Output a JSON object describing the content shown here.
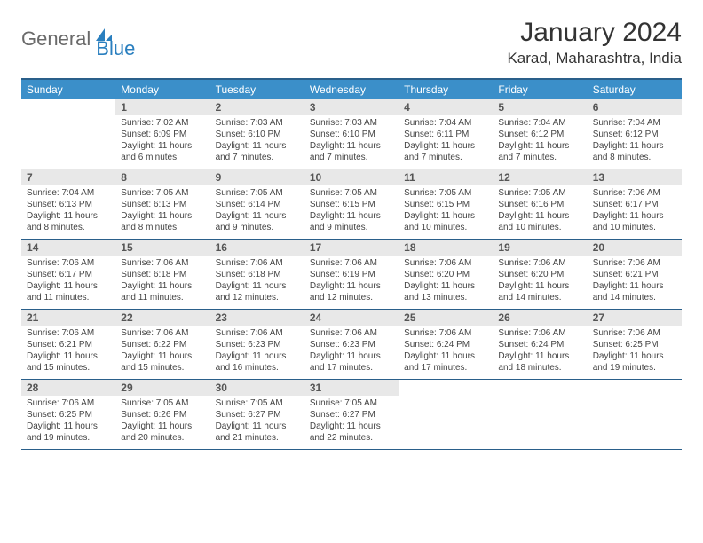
{
  "logo": {
    "text1": "General",
    "text2": "Blue"
  },
  "title": "January 2024",
  "location": "Karad, Maharashtra, India",
  "colors": {
    "header_bg": "#3b8fc9",
    "border": "#2a5f8a",
    "daynum_bg": "#e8e8e8"
  },
  "day_names": [
    "Sunday",
    "Monday",
    "Tuesday",
    "Wednesday",
    "Thursday",
    "Friday",
    "Saturday"
  ],
  "weeks": [
    [
      {
        "num": "",
        "sunrise": "",
        "sunset": "",
        "daylight": ""
      },
      {
        "num": "1",
        "sunrise": "Sunrise: 7:02 AM",
        "sunset": "Sunset: 6:09 PM",
        "daylight": "Daylight: 11 hours and 6 minutes."
      },
      {
        "num": "2",
        "sunrise": "Sunrise: 7:03 AM",
        "sunset": "Sunset: 6:10 PM",
        "daylight": "Daylight: 11 hours and 7 minutes."
      },
      {
        "num": "3",
        "sunrise": "Sunrise: 7:03 AM",
        "sunset": "Sunset: 6:10 PM",
        "daylight": "Daylight: 11 hours and 7 minutes."
      },
      {
        "num": "4",
        "sunrise": "Sunrise: 7:04 AM",
        "sunset": "Sunset: 6:11 PM",
        "daylight": "Daylight: 11 hours and 7 minutes."
      },
      {
        "num": "5",
        "sunrise": "Sunrise: 7:04 AM",
        "sunset": "Sunset: 6:12 PM",
        "daylight": "Daylight: 11 hours and 7 minutes."
      },
      {
        "num": "6",
        "sunrise": "Sunrise: 7:04 AM",
        "sunset": "Sunset: 6:12 PM",
        "daylight": "Daylight: 11 hours and 8 minutes."
      }
    ],
    [
      {
        "num": "7",
        "sunrise": "Sunrise: 7:04 AM",
        "sunset": "Sunset: 6:13 PM",
        "daylight": "Daylight: 11 hours and 8 minutes."
      },
      {
        "num": "8",
        "sunrise": "Sunrise: 7:05 AM",
        "sunset": "Sunset: 6:13 PM",
        "daylight": "Daylight: 11 hours and 8 minutes."
      },
      {
        "num": "9",
        "sunrise": "Sunrise: 7:05 AM",
        "sunset": "Sunset: 6:14 PM",
        "daylight": "Daylight: 11 hours and 9 minutes."
      },
      {
        "num": "10",
        "sunrise": "Sunrise: 7:05 AM",
        "sunset": "Sunset: 6:15 PM",
        "daylight": "Daylight: 11 hours and 9 minutes."
      },
      {
        "num": "11",
        "sunrise": "Sunrise: 7:05 AM",
        "sunset": "Sunset: 6:15 PM",
        "daylight": "Daylight: 11 hours and 10 minutes."
      },
      {
        "num": "12",
        "sunrise": "Sunrise: 7:05 AM",
        "sunset": "Sunset: 6:16 PM",
        "daylight": "Daylight: 11 hours and 10 minutes."
      },
      {
        "num": "13",
        "sunrise": "Sunrise: 7:06 AM",
        "sunset": "Sunset: 6:17 PM",
        "daylight": "Daylight: 11 hours and 10 minutes."
      }
    ],
    [
      {
        "num": "14",
        "sunrise": "Sunrise: 7:06 AM",
        "sunset": "Sunset: 6:17 PM",
        "daylight": "Daylight: 11 hours and 11 minutes."
      },
      {
        "num": "15",
        "sunrise": "Sunrise: 7:06 AM",
        "sunset": "Sunset: 6:18 PM",
        "daylight": "Daylight: 11 hours and 11 minutes."
      },
      {
        "num": "16",
        "sunrise": "Sunrise: 7:06 AM",
        "sunset": "Sunset: 6:18 PM",
        "daylight": "Daylight: 11 hours and 12 minutes."
      },
      {
        "num": "17",
        "sunrise": "Sunrise: 7:06 AM",
        "sunset": "Sunset: 6:19 PM",
        "daylight": "Daylight: 11 hours and 12 minutes."
      },
      {
        "num": "18",
        "sunrise": "Sunrise: 7:06 AM",
        "sunset": "Sunset: 6:20 PM",
        "daylight": "Daylight: 11 hours and 13 minutes."
      },
      {
        "num": "19",
        "sunrise": "Sunrise: 7:06 AM",
        "sunset": "Sunset: 6:20 PM",
        "daylight": "Daylight: 11 hours and 14 minutes."
      },
      {
        "num": "20",
        "sunrise": "Sunrise: 7:06 AM",
        "sunset": "Sunset: 6:21 PM",
        "daylight": "Daylight: 11 hours and 14 minutes."
      }
    ],
    [
      {
        "num": "21",
        "sunrise": "Sunrise: 7:06 AM",
        "sunset": "Sunset: 6:21 PM",
        "daylight": "Daylight: 11 hours and 15 minutes."
      },
      {
        "num": "22",
        "sunrise": "Sunrise: 7:06 AM",
        "sunset": "Sunset: 6:22 PM",
        "daylight": "Daylight: 11 hours and 15 minutes."
      },
      {
        "num": "23",
        "sunrise": "Sunrise: 7:06 AM",
        "sunset": "Sunset: 6:23 PM",
        "daylight": "Daylight: 11 hours and 16 minutes."
      },
      {
        "num": "24",
        "sunrise": "Sunrise: 7:06 AM",
        "sunset": "Sunset: 6:23 PM",
        "daylight": "Daylight: 11 hours and 17 minutes."
      },
      {
        "num": "25",
        "sunrise": "Sunrise: 7:06 AM",
        "sunset": "Sunset: 6:24 PM",
        "daylight": "Daylight: 11 hours and 17 minutes."
      },
      {
        "num": "26",
        "sunrise": "Sunrise: 7:06 AM",
        "sunset": "Sunset: 6:24 PM",
        "daylight": "Daylight: 11 hours and 18 minutes."
      },
      {
        "num": "27",
        "sunrise": "Sunrise: 7:06 AM",
        "sunset": "Sunset: 6:25 PM",
        "daylight": "Daylight: 11 hours and 19 minutes."
      }
    ],
    [
      {
        "num": "28",
        "sunrise": "Sunrise: 7:06 AM",
        "sunset": "Sunset: 6:25 PM",
        "daylight": "Daylight: 11 hours and 19 minutes."
      },
      {
        "num": "29",
        "sunrise": "Sunrise: 7:05 AM",
        "sunset": "Sunset: 6:26 PM",
        "daylight": "Daylight: 11 hours and 20 minutes."
      },
      {
        "num": "30",
        "sunrise": "Sunrise: 7:05 AM",
        "sunset": "Sunset: 6:27 PM",
        "daylight": "Daylight: 11 hours and 21 minutes."
      },
      {
        "num": "31",
        "sunrise": "Sunrise: 7:05 AM",
        "sunset": "Sunset: 6:27 PM",
        "daylight": "Daylight: 11 hours and 22 minutes."
      },
      {
        "num": "",
        "sunrise": "",
        "sunset": "",
        "daylight": ""
      },
      {
        "num": "",
        "sunrise": "",
        "sunset": "",
        "daylight": ""
      },
      {
        "num": "",
        "sunrise": "",
        "sunset": "",
        "daylight": ""
      }
    ]
  ]
}
